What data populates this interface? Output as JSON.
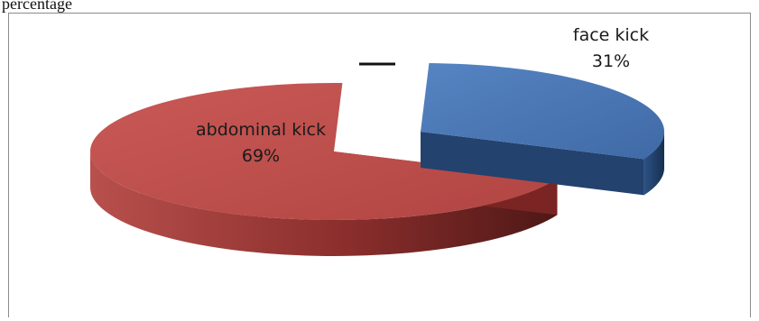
{
  "caption": "percentage",
  "chart_data": {
    "type": "pie",
    "three_d": true,
    "exploded": true,
    "title": "",
    "legend": "none",
    "slices": [
      {
        "label": "face kick",
        "value": 31,
        "display": "31%",
        "color": "#4a76b5",
        "side_color": "#1f3b63"
      },
      {
        "label": "abdominal kick",
        "value": 69,
        "display": "69%",
        "color": "#bd4c4a",
        "side_color": "#5e1c1a"
      }
    ]
  }
}
